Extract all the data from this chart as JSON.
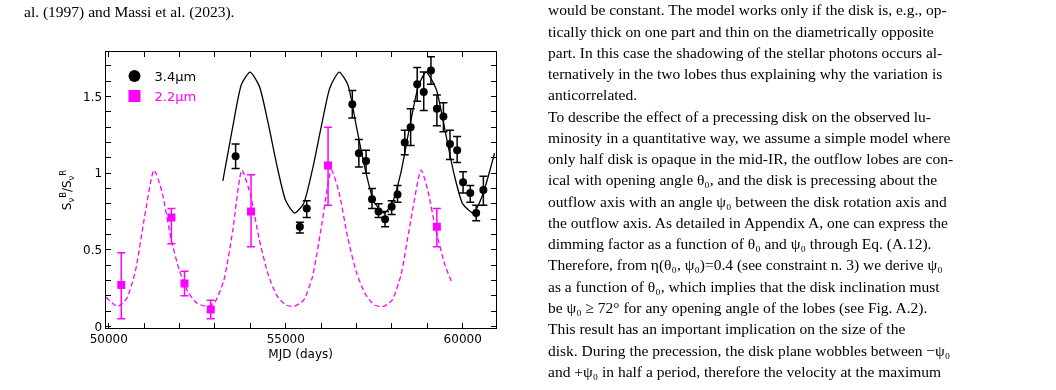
{
  "chart_data": {
    "type": "scatter",
    "xlabel": "MJD (days)",
    "ylabel": "S$_{ν}$$^{B}$/S$_{ν}$$^{R}$",
    "xlim": [
      49910,
      60930
    ],
    "ylim": [
      -0.01,
      1.79
    ],
    "xticks": [
      50000,
      {
        "value": 51000,
        "label": null
      },
      {
        "value": 52000,
        "label": null
      },
      {
        "value": 53000,
        "label": null
      },
      {
        "value": 54000,
        "label": null
      },
      55000,
      {
        "value": 56000,
        "label": null
      },
      {
        "value": 57000,
        "label": null
      },
      {
        "value": 58000,
        "label": null
      },
      {
        "value": 59000,
        "label": null
      },
      60000
    ],
    "yticks": [
      0,
      {
        "value": 0.1,
        "label": null
      },
      {
        "value": 0.2,
        "label": null
      },
      {
        "value": 0.3,
        "label": null
      },
      {
        "value": 0.4,
        "label": null
      },
      0.5,
      {
        "value": 0.6,
        "label": null
      },
      {
        "value": 0.7,
        "label": null
      },
      {
        "value": 0.8,
        "label": null
      },
      {
        "value": 0.9,
        "label": null
      },
      1,
      {
        "value": 1.1,
        "label": null
      },
      {
        "value": 1.2,
        "label": null
      },
      {
        "value": 1.3,
        "label": null
      },
      {
        "value": 1.4,
        "label": null
      },
      1.5,
      {
        "value": 1.6,
        "label": null
      },
      {
        "value": 1.7,
        "label": null
      }
    ],
    "legend": "top left",
    "series": [
      {
        "name": "3.4μm",
        "marker": "circle",
        "color": "#000000",
        "x": [
          53583,
          55398,
          55593,
          56880,
          57066,
          57270,
          57437,
          57622,
          57806,
          57992,
          58158,
          58362,
          58529,
          58714,
          58899,
          59103,
          59270,
          59455,
          59640,
          59843,
          60010,
          60214,
          60381,
          60584
        ],
        "values": [
          1.11,
          0.65,
          0.77,
          1.45,
          1.13,
          1.08,
          0.83,
          0.75,
          0.7,
          0.78,
          0.86,
          1.2,
          1.3,
          1.58,
          1.53,
          1.67,
          1.42,
          1.37,
          1.19,
          1.15,
          0.94,
          0.87,
          0.74,
          0.89
        ],
        "errors": [
          [
            1.03,
            1.19
          ],
          [
            0.61,
            0.68
          ],
          [
            0.71,
            0.82
          ],
          [
            1.36,
            1.54
          ],
          [
            1.04,
            1.22
          ],
          [
            1.0,
            1.15
          ],
          [
            0.77,
            0.9
          ],
          [
            0.71,
            0.8
          ],
          [
            0.65,
            0.75
          ],
          [
            0.73,
            0.82
          ],
          [
            0.81,
            0.92
          ],
          [
            1.12,
            1.28
          ],
          [
            1.18,
            1.42
          ],
          [
            1.47,
            1.69
          ],
          [
            1.41,
            1.66
          ],
          [
            1.58,
            1.76
          ],
          [
            1.31,
            1.51
          ],
          [
            1.27,
            1.46
          ],
          [
            1.09,
            1.28
          ],
          [
            1.07,
            1.24
          ],
          [
            0.87,
            1.01
          ],
          [
            0.81,
            0.92
          ],
          [
            0.69,
            0.79
          ],
          [
            0.79,
            0.98
          ]
        ]
      },
      {
        "name": "2.2μm",
        "marker": "square",
        "color": "#ff00ff",
        "x": [
          50352,
          51768,
          52139,
          52880,
          54019,
          56195,
          59270
        ],
        "values": [
          0.27,
          0.71,
          0.28,
          0.11,
          0.75,
          1.05,
          0.65
        ],
        "errors": [
          [
            0.05,
            0.48
          ],
          [
            0.54,
            0.77
          ],
          [
            0.2,
            0.36
          ],
          [
            0.05,
            0.17
          ],
          [
            0.52,
            0.99
          ],
          [
            0.79,
            1.3
          ],
          [
            0.52,
            0.77
          ]
        ]
      },
      {
        "type": "line",
        "color": "#000000",
        "line_style": "solid",
        "marker": "none",
        "x": [
          53222,
          53500,
          53750,
          53992,
          54250,
          54500,
          54750,
          55000,
          55250,
          55500,
          55750,
          56000,
          56250,
          56510,
          56750,
          57000,
          57250,
          57500,
          57780,
          58000,
          58250,
          58500,
          58750,
          58964,
          59250,
          59500,
          59750,
          60000,
          60300,
          60550,
          60900
        ],
        "values": [
          0.95,
          1.3,
          1.58,
          1.66,
          1.57,
          1.33,
          1.05,
          0.82,
          0.74,
          0.8,
          1.02,
          1.3,
          1.56,
          1.66,
          1.58,
          1.3,
          1.02,
          0.81,
          0.74,
          0.8,
          1.0,
          1.3,
          1.57,
          1.66,
          1.55,
          1.28,
          1.0,
          0.8,
          0.74,
          0.85,
          1.13
        ]
      },
      {
        "type": "line",
        "color": "#ff00ff",
        "line_style": "dashed",
        "marker": "none",
        "x": [
          49920,
          50250,
          50500,
          50750,
          51000,
          51278,
          51500,
          51750,
          52000,
          52250,
          52500,
          52800,
          53000,
          53250,
          53500,
          53759,
          54000,
          54250,
          54500,
          54750,
          55000,
          55230,
          55500,
          55750,
          56000,
          56290,
          56500,
          56750,
          57000,
          57250,
          57500,
          57760,
          58000,
          58250,
          58500,
          58825,
          59000,
          59250,
          59500,
          59705
        ],
        "values": [
          0.19,
          0.13,
          0.18,
          0.36,
          0.7,
          1.02,
          0.88,
          0.58,
          0.36,
          0.22,
          0.15,
          0.13,
          0.16,
          0.3,
          0.62,
          1.02,
          0.86,
          0.57,
          0.34,
          0.2,
          0.14,
          0.13,
          0.17,
          0.32,
          0.64,
          1.02,
          0.88,
          0.58,
          0.35,
          0.21,
          0.14,
          0.13,
          0.17,
          0.33,
          0.65,
          1.02,
          0.9,
          0.62,
          0.4,
          0.28
        ]
      }
    ],
    "annotations": [
      "al. (1997) and Massi et al. (2023).",
      "would be constant. The model works only if the disk is, e.g., op-",
      "tically thick on one part and thin on the diametrically opposite",
      "part. In this case the shadowing of the stellar photons occurs al-",
      "ternatively in the two lobes thus explaining why the variation is",
      "anticorrelated.",
      "To describe the effect of a precessing disk on the observed lu-",
      "minosity in a quantitative way, we assume a simple model where",
      "only half disk is opaque in the mid-IR, the outflow lobes are con-",
      "ical with opening angle θ₀, and the disk is precessing about the",
      "outflow axis with an angle ψ₀ between the disk rotation axis and",
      "the outflow axis. As detailed in Appendix A, one can express the",
      "dimming factor as a function of θ₀ and ψ₀ through Eq. (A.12).",
      "Therefore, from η(θ₀, ψ₀)=0.4 (see constraint n. 3) we derive ψ₀",
      "as a function of θ₀, which implies that the disk inclination must",
      "be ψ₀ ≥ 72° for any opening angle of the lobes (see Fig. A.2).",
      "This result has an important implication on the size of the",
      "disk. During the precession, the disk plane wobbles between −ψ₀",
      "and +ψ₀ in half a period, therefore the velocity at the maximum"
    ]
  }
}
